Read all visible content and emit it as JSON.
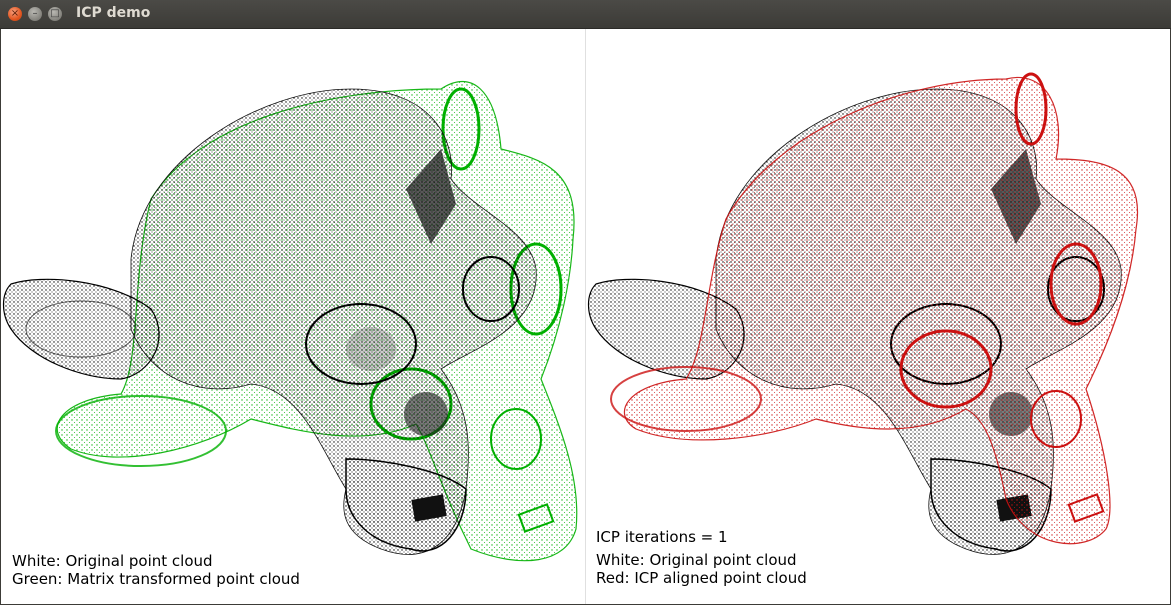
{
  "window": {
    "title": "ICP demo"
  },
  "titlebar_buttons": {
    "close": "×",
    "minimize": "–",
    "maximize": "□"
  },
  "colors": {
    "original": "#000000",
    "transformed": "#00b000",
    "aligned": "#cc1111",
    "background": "#ffffff"
  },
  "left_view": {
    "line1": "White: Original point cloud",
    "line2": "Green: Matrix transformed point cloud"
  },
  "right_view": {
    "iterations": "ICP iterations = 1",
    "line1": "White: Original point cloud",
    "line2": "Red: ICP aligned point cloud"
  }
}
